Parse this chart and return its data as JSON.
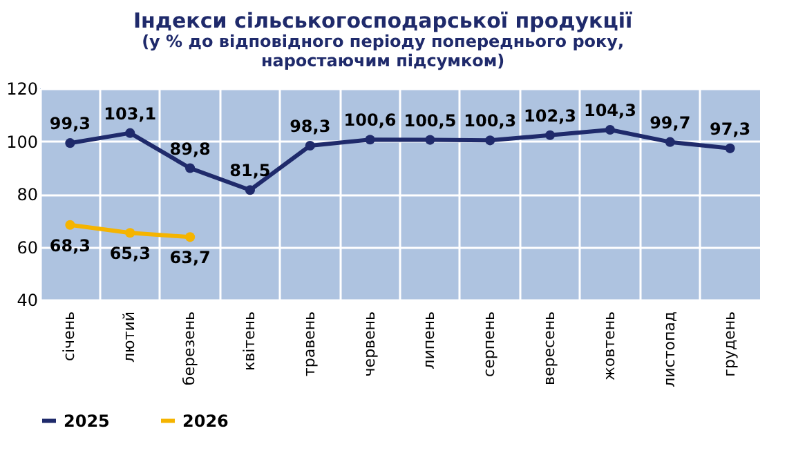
{
  "chart_data": {
    "type": "line",
    "title": "Індекси сільськогосподарської продукції",
    "subtitle": "(у % до відповідного періоду попереднього року, наростаючим підсумком)",
    "categories": [
      "січень",
      "лютий",
      "березень",
      "квітень",
      "травень",
      "червень",
      "липень",
      "серпень",
      "вересень",
      "жовтень",
      "листопад",
      "грудень"
    ],
    "series": [
      {
        "name": "2025",
        "color": "#1f2a6b",
        "values": [
          99.3,
          103.1,
          89.8,
          81.5,
          98.3,
          100.6,
          100.5,
          100.3,
          102.3,
          104.3,
          99.7,
          97.3
        ],
        "value_labels": [
          "99,3",
          "103,1",
          "89,8",
          "81,5",
          "98,3",
          "100,6",
          "100,5",
          "100,3",
          "102,3",
          "104,3",
          "99,7",
          "97,3"
        ]
      },
      {
        "name": "2026",
        "color": "#f5b400",
        "values": [
          68.3,
          65.3,
          63.7,
          null,
          null,
          null,
          null,
          null,
          null,
          null,
          null,
          null
        ],
        "value_labels": [
          "68,3",
          "65,3",
          "63,7",
          null,
          null,
          null,
          null,
          null,
          null,
          null,
          null,
          null
        ]
      }
    ],
    "ylim": [
      40,
      120
    ],
    "yticks": [
      40,
      60,
      80,
      100,
      120
    ],
    "grid": true,
    "legend": "bottom",
    "marker": "circle"
  }
}
